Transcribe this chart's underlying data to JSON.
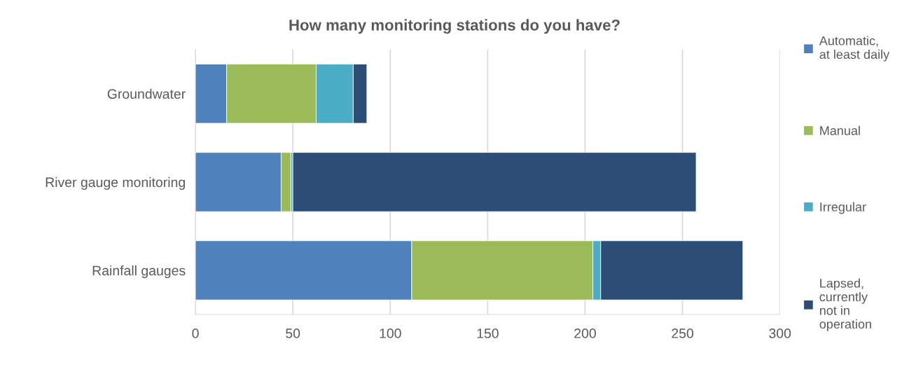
{
  "chart_data": {
    "type": "bar",
    "orientation": "horizontal",
    "stacked": true,
    "title": "How many monitoring stations do you have?",
    "categories": [
      "Groundwater",
      "River gauge monitoring",
      "Rainfall gauges"
    ],
    "series": [
      {
        "name": "Automatic,\nat least daily",
        "color": "#4f81bd",
        "values": [
          16,
          44,
          111
        ]
      },
      {
        "name": "Manual",
        "color": "#9bbb59",
        "values": [
          46,
          5,
          93
        ]
      },
      {
        "name": "Irregular",
        "color": "#4bacc6",
        "values": [
          19,
          1,
          4
        ]
      },
      {
        "name": "Lapsed,\ncurrently\nnot in\noperation",
        "color": "#2c4d75",
        "values": [
          7,
          207,
          73
        ]
      }
    ],
    "xlim": [
      0,
      300
    ],
    "xticks": [
      0,
      50,
      100,
      150,
      200,
      250,
      300
    ],
    "grid": "x",
    "legend": "right"
  }
}
